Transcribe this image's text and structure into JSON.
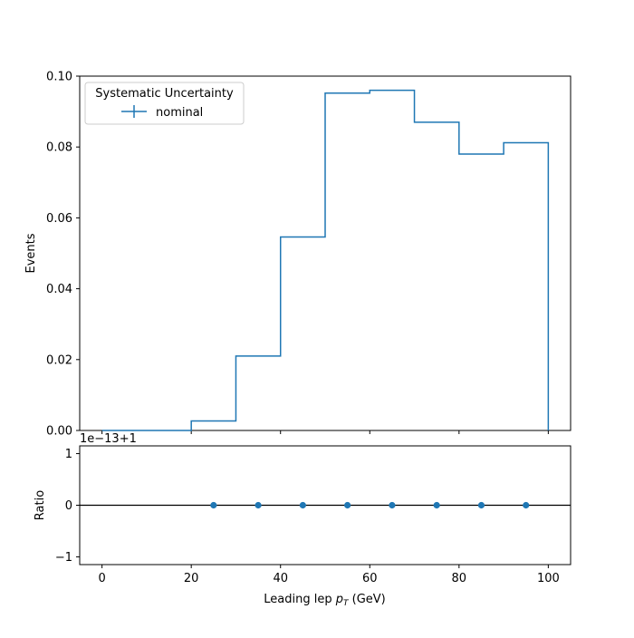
{
  "chart_data": [
    {
      "type": "step-histogram",
      "ylabel": "Events",
      "xlim": [
        -5,
        105
      ],
      "ylim": [
        0,
        0.1
      ],
      "bin_edges": [
        0,
        10,
        20,
        30,
        40,
        50,
        60,
        70,
        80,
        90,
        100
      ],
      "values": [
        0.0,
        0.0,
        0.0027,
        0.021,
        0.0546,
        0.0952,
        0.096,
        0.087,
        0.078,
        0.0812
      ],
      "y_ticks": [
        0.0,
        0.02,
        0.04,
        0.06,
        0.08,
        0.1
      ],
      "y_tick_labels": [
        "0.00",
        "0.02",
        "0.04",
        "0.06",
        "0.08",
        "0.10"
      ],
      "x_ticks": [
        0,
        20,
        40,
        60,
        80,
        100
      ],
      "color": "#1f77b4",
      "legend": {
        "title": "Systematic Uncertainty",
        "entries": [
          "nominal"
        ],
        "placement": "top-left"
      }
    },
    {
      "type": "scatter",
      "ylabel": "Ratio",
      "xlabel": "Leading lep p_T (GeV)",
      "xlabel_main": "Leading lep ",
      "xlabel_sym": "p",
      "xlabel_sub": "T",
      "xlabel_unit": " (GeV)",
      "offset_label": "1e−13+1",
      "xlim": [
        -5,
        105
      ],
      "ylim": [
        -1.15,
        1.15
      ],
      "x": [
        25,
        35,
        45,
        55,
        65,
        75,
        85,
        95
      ],
      "y": [
        0,
        0,
        0,
        0,
        0,
        0,
        0,
        0
      ],
      "reference_line": 0,
      "y_ticks": [
        -1,
        0,
        1
      ],
      "y_tick_labels": [
        "−1",
        "0",
        "1"
      ],
      "x_ticks": [
        0,
        20,
        40,
        60,
        80,
        100
      ],
      "x_tick_labels": [
        "0",
        "20",
        "40",
        "60",
        "80",
        "100"
      ],
      "color": "#1f77b4"
    }
  ]
}
